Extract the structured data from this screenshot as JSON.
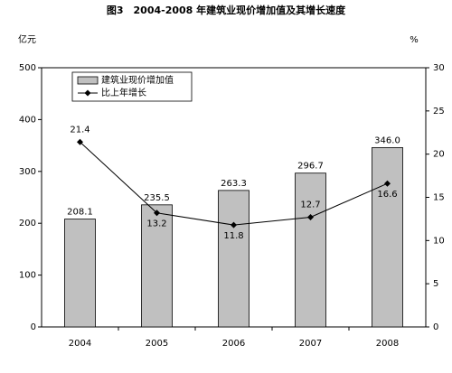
{
  "chart_data": {
    "type": "bar",
    "title": "图3　2004-2008 年建筑业现价增加值及其增长速度",
    "y_label": "亿元",
    "y2_label": "%",
    "categories": [
      "2004",
      "2005",
      "2006",
      "2007",
      "2008"
    ],
    "series": [
      {
        "name": "建筑业现价增加值",
        "type": "bar",
        "color": "#c0c0c0",
        "values": [
          208.1,
          235.5,
          263.3,
          296.7,
          346
        ],
        "value_labels": [
          "208.1",
          "235.5",
          "263.3",
          "296.7",
          "346.0"
        ]
      },
      {
        "name": "比上年增长",
        "type": "line",
        "axis": "y2",
        "color": "#000000",
        "values": [
          21.4,
          13.2,
          11.8,
          12.7,
          16.6
        ]
      }
    ],
    "ylim": [
      0,
      500
    ],
    "yticks": [
      0,
      100,
      200,
      300,
      400,
      500
    ],
    "y2lim": [
      0,
      30
    ],
    "y2ticks": [
      0,
      5,
      10,
      15,
      20,
      25,
      30
    ]
  }
}
